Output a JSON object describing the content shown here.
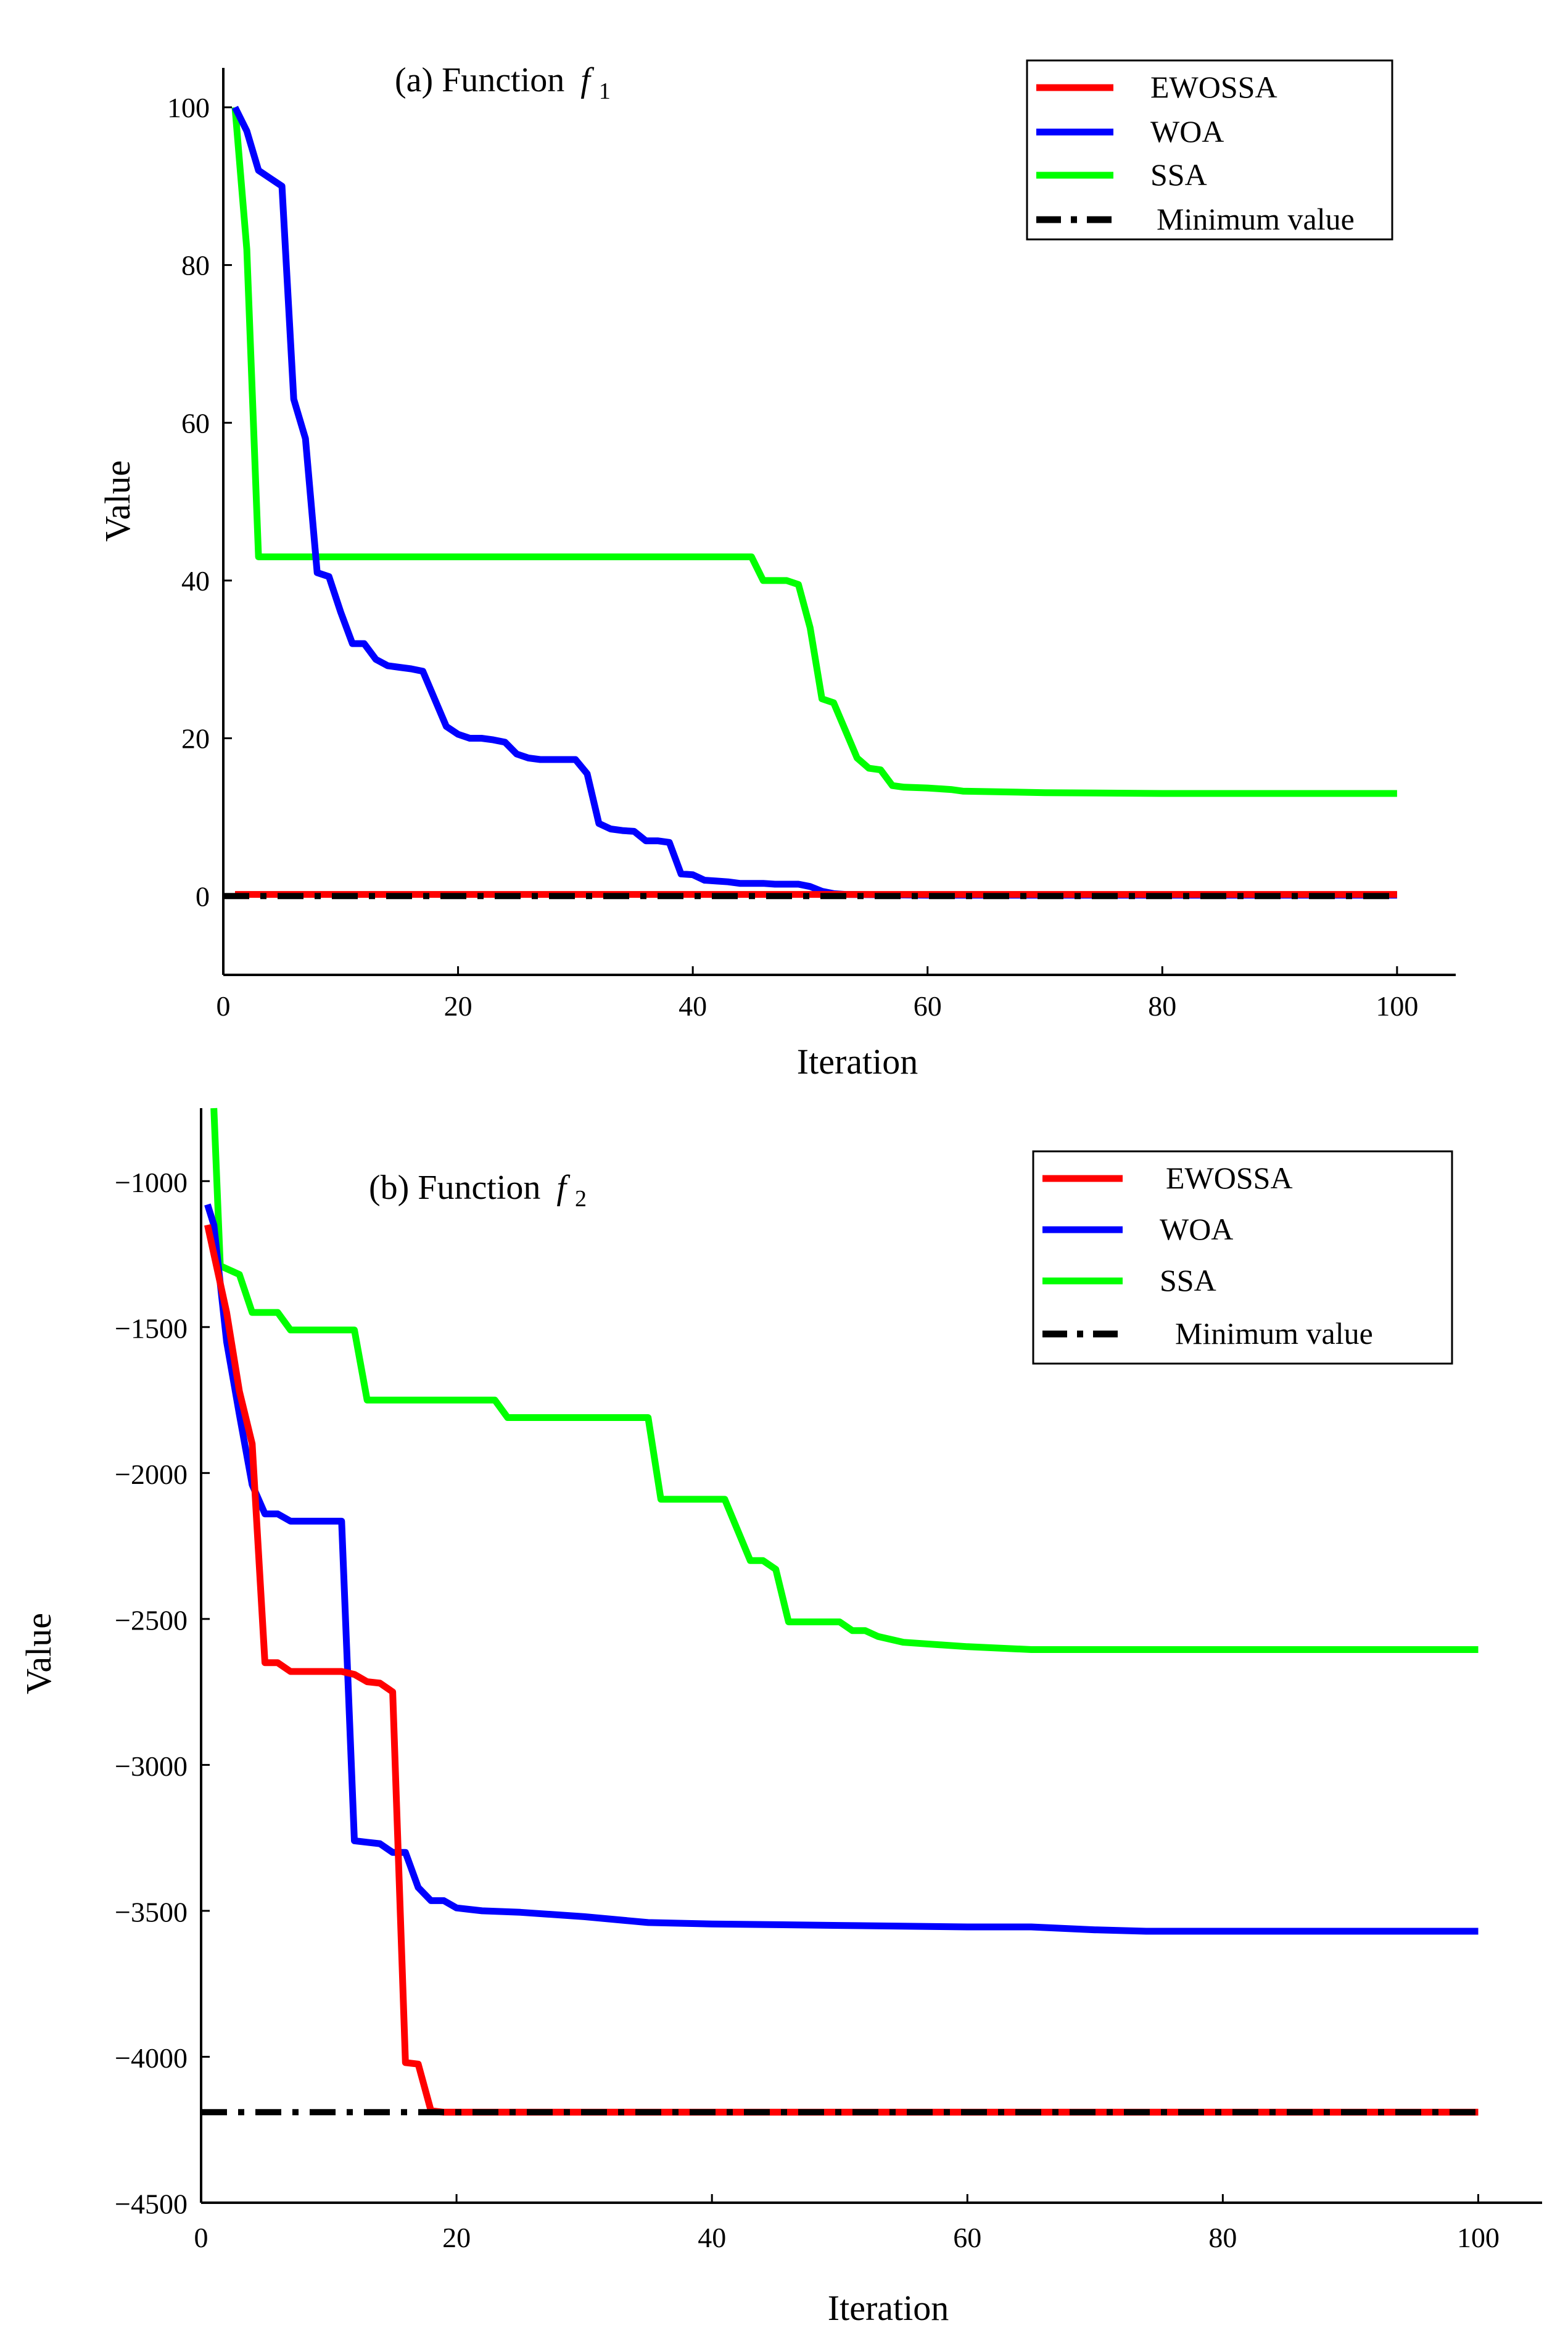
{
  "colors": {
    "EWOSSA": "#ff0000",
    "WOA": "#0000ff",
    "SSA": "#00ff00",
    "Minimum value": "#000000"
  },
  "chart_data": [
    {
      "type": "line",
      "title": "(a) Function",
      "title_symbol": "f",
      "title_subscript": "1",
      "xlabel": "Iteration",
      "ylabel": "Value",
      "xlim": [
        0,
        105
      ],
      "ylim": [
        -10,
        105
      ],
      "xticks": [
        0,
        20,
        40,
        60,
        80,
        100
      ],
      "yticks": [
        0,
        20,
        40,
        60,
        80,
        100
      ],
      "xtick_labels": [
        "0",
        "20",
        "40",
        "60",
        "80",
        "100"
      ],
      "ytick_labels": [
        "0",
        "20",
        "40",
        "60",
        "80",
        "100"
      ],
      "legend_position": "top-right",
      "series": [
        {
          "name": "EWOSSA",
          "points": [
            [
              1,
              0.2
            ],
            [
              100,
              0.2
            ]
          ]
        },
        {
          "name": "WOA",
          "points": [
            [
              1,
              100
            ],
            [
              2,
              97
            ],
            [
              3,
              92
            ],
            [
              4,
              91
            ],
            [
              5,
              90
            ],
            [
              6,
              63
            ],
            [
              7,
              58
            ],
            [
              8,
              41
            ],
            [
              9,
              40.5
            ],
            [
              10,
              36
            ],
            [
              11,
              32
            ],
            [
              12,
              32
            ],
            [
              13,
              30
            ],
            [
              14,
              29.2
            ],
            [
              15,
              29
            ],
            [
              16,
              28.8
            ],
            [
              17,
              28.5
            ],
            [
              18,
              25
            ],
            [
              19,
              21.5
            ],
            [
              20,
              20.5
            ],
            [
              21,
              20
            ],
            [
              22,
              20
            ],
            [
              23,
              19.8
            ],
            [
              24,
              19.5
            ],
            [
              25,
              18
            ],
            [
              26,
              17.5
            ],
            [
              27,
              17.3
            ],
            [
              28,
              17.3
            ],
            [
              29,
              17.3
            ],
            [
              30,
              17.3
            ],
            [
              31,
              15.5
            ],
            [
              32,
              9.2
            ],
            [
              33,
              8.5
            ],
            [
              34,
              8.3
            ],
            [
              35,
              8.2
            ],
            [
              36,
              7
            ],
            [
              37,
              7
            ],
            [
              38,
              6.8
            ],
            [
              39,
              2.8
            ],
            [
              40,
              2.7
            ],
            [
              41,
              2
            ],
            [
              42,
              1.9
            ],
            [
              43,
              1.8
            ],
            [
              44,
              1.6
            ],
            [
              45,
              1.6
            ],
            [
              46,
              1.6
            ],
            [
              47,
              1.5
            ],
            [
              48,
              1.5
            ],
            [
              49,
              1.5
            ],
            [
              50,
              1.2
            ],
            [
              51,
              0.6
            ],
            [
              52,
              0.3
            ],
            [
              53,
              0.2
            ],
            [
              60,
              0.1
            ],
            [
              100,
              0.1
            ]
          ]
        },
        {
          "name": "SSA",
          "points": [
            [
              1,
              100
            ],
            [
              2,
              82
            ],
            [
              3,
              43
            ],
            [
              10,
              43
            ],
            [
              20,
              43
            ],
            [
              30,
              43
            ],
            [
              40,
              43
            ],
            [
              45,
              43
            ],
            [
              46,
              40
            ],
            [
              47,
              40
            ],
            [
              48,
              40
            ],
            [
              49,
              39.5
            ],
            [
              50,
              34
            ],
            [
              51,
              25
            ],
            [
              52,
              24.5
            ],
            [
              53,
              21
            ],
            [
              54,
              17.5
            ],
            [
              55,
              16.2
            ],
            [
              56,
              16
            ],
            [
              57,
              14
            ],
            [
              58,
              13.8
            ],
            [
              60,
              13.7
            ],
            [
              62,
              13.5
            ],
            [
              63,
              13.3
            ],
            [
              70,
              13.1
            ],
            [
              80,
              13
            ],
            [
              100,
              13
            ]
          ]
        },
        {
          "name": "Minimum value",
          "points": [
            [
              0,
              0
            ],
            [
              100,
              0
            ]
          ]
        }
      ]
    },
    {
      "type": "line",
      "title": "(b) Function",
      "title_symbol": "f",
      "title_subscript": "2",
      "xlabel": "Iteration",
      "ylabel": "Value",
      "xlim": [
        0,
        105
      ],
      "ylim": [
        -4500,
        -750
      ],
      "xticks": [
        0,
        20,
        40,
        60,
        80,
        100
      ],
      "yticks": [
        -1000,
        -1500,
        -2000,
        -2500,
        -3000,
        -3500,
        -4000,
        -4500
      ],
      "xtick_labels": [
        "0",
        "20",
        "40",
        "60",
        "80",
        "100"
      ],
      "ytick_labels": [
        "−1000",
        "−1500",
        "−2000",
        "−2500",
        "−3000",
        "−3500",
        "−4000",
        "−4500"
      ],
      "legend_position": "top-right",
      "series": [
        {
          "name": "EWOSSA",
          "points": [
            [
              0.5,
              -1150
            ],
            [
              2,
              -1450
            ],
            [
              3,
              -1720
            ],
            [
              4,
              -1900
            ],
            [
              5,
              -2650
            ],
            [
              6,
              -2650
            ],
            [
              7,
              -2680
            ],
            [
              8,
              -2680
            ],
            [
              9,
              -2680
            ],
            [
              10,
              -2680
            ],
            [
              11,
              -2680
            ],
            [
              12,
              -2690
            ],
            [
              13,
              -2715
            ],
            [
              14,
              -2720
            ],
            [
              15,
              -2750
            ],
            [
              16,
              -4020
            ],
            [
              17,
              -4025
            ],
            [
              18,
              -4185
            ],
            [
              19,
              -4190
            ],
            [
              100,
              -4190
            ]
          ]
        },
        {
          "name": "WOA",
          "points": [
            [
              0.5,
              -1080
            ],
            [
              1,
              -1150
            ],
            [
              2,
              -1550
            ],
            [
              3,
              -1800
            ],
            [
              4,
              -2040
            ],
            [
              5,
              -2140
            ],
            [
              6,
              -2140
            ],
            [
              7,
              -2165
            ],
            [
              8,
              -2165
            ],
            [
              9,
              -2165
            ],
            [
              10,
              -2165
            ],
            [
              11,
              -2165
            ],
            [
              12,
              -3260
            ],
            [
              13,
              -3265
            ],
            [
              14,
              -3270
            ],
            [
              15,
              -3300
            ],
            [
              16,
              -3300
            ],
            [
              17,
              -3420
            ],
            [
              18,
              -3465
            ],
            [
              19,
              -3465
            ],
            [
              20,
              -3490
            ],
            [
              22,
              -3500
            ],
            [
              25,
              -3505
            ],
            [
              30,
              -3520
            ],
            [
              35,
              -3540
            ],
            [
              40,
              -3545
            ],
            [
              50,
              -3550
            ],
            [
              60,
              -3555
            ],
            [
              65,
              -3555
            ],
            [
              70,
              -3565
            ],
            [
              74,
              -3570
            ],
            [
              80,
              -3570
            ],
            [
              100,
              -3570
            ]
          ]
        },
        {
          "name": "SSA",
          "points": [
            [
              1,
              -750
            ],
            [
              1.5,
              -1290
            ],
            [
              2,
              -1300
            ],
            [
              3,
              -1320
            ],
            [
              4,
              -1450
            ],
            [
              5,
              -1450
            ],
            [
              6,
              -1450
            ],
            [
              7,
              -1510
            ],
            [
              8,
              -1510
            ],
            [
              10,
              -1510
            ],
            [
              12,
              -1510
            ],
            [
              13,
              -1750
            ],
            [
              15,
              -1750
            ],
            [
              20,
              -1750
            ],
            [
              23,
              -1750
            ],
            [
              24,
              -1810
            ],
            [
              30,
              -1810
            ],
            [
              35,
              -1810
            ],
            [
              36,
              -2090
            ],
            [
              40,
              -2090
            ],
            [
              41,
              -2090
            ],
            [
              43,
              -2300
            ],
            [
              44,
              -2300
            ],
            [
              45,
              -2330
            ],
            [
              46,
              -2510
            ],
            [
              50,
              -2510
            ],
            [
              51,
              -2540
            ],
            [
              52,
              -2540
            ],
            [
              53,
              -2560
            ],
            [
              55,
              -2580
            ],
            [
              60,
              -2595
            ],
            [
              65,
              -2605
            ],
            [
              70,
              -2605
            ],
            [
              80,
              -2605
            ],
            [
              100,
              -2605
            ]
          ]
        },
        {
          "name": "Minimum value",
          "points": [
            [
              0,
              -4190
            ],
            [
              100,
              -4190
            ]
          ]
        }
      ]
    }
  ]
}
